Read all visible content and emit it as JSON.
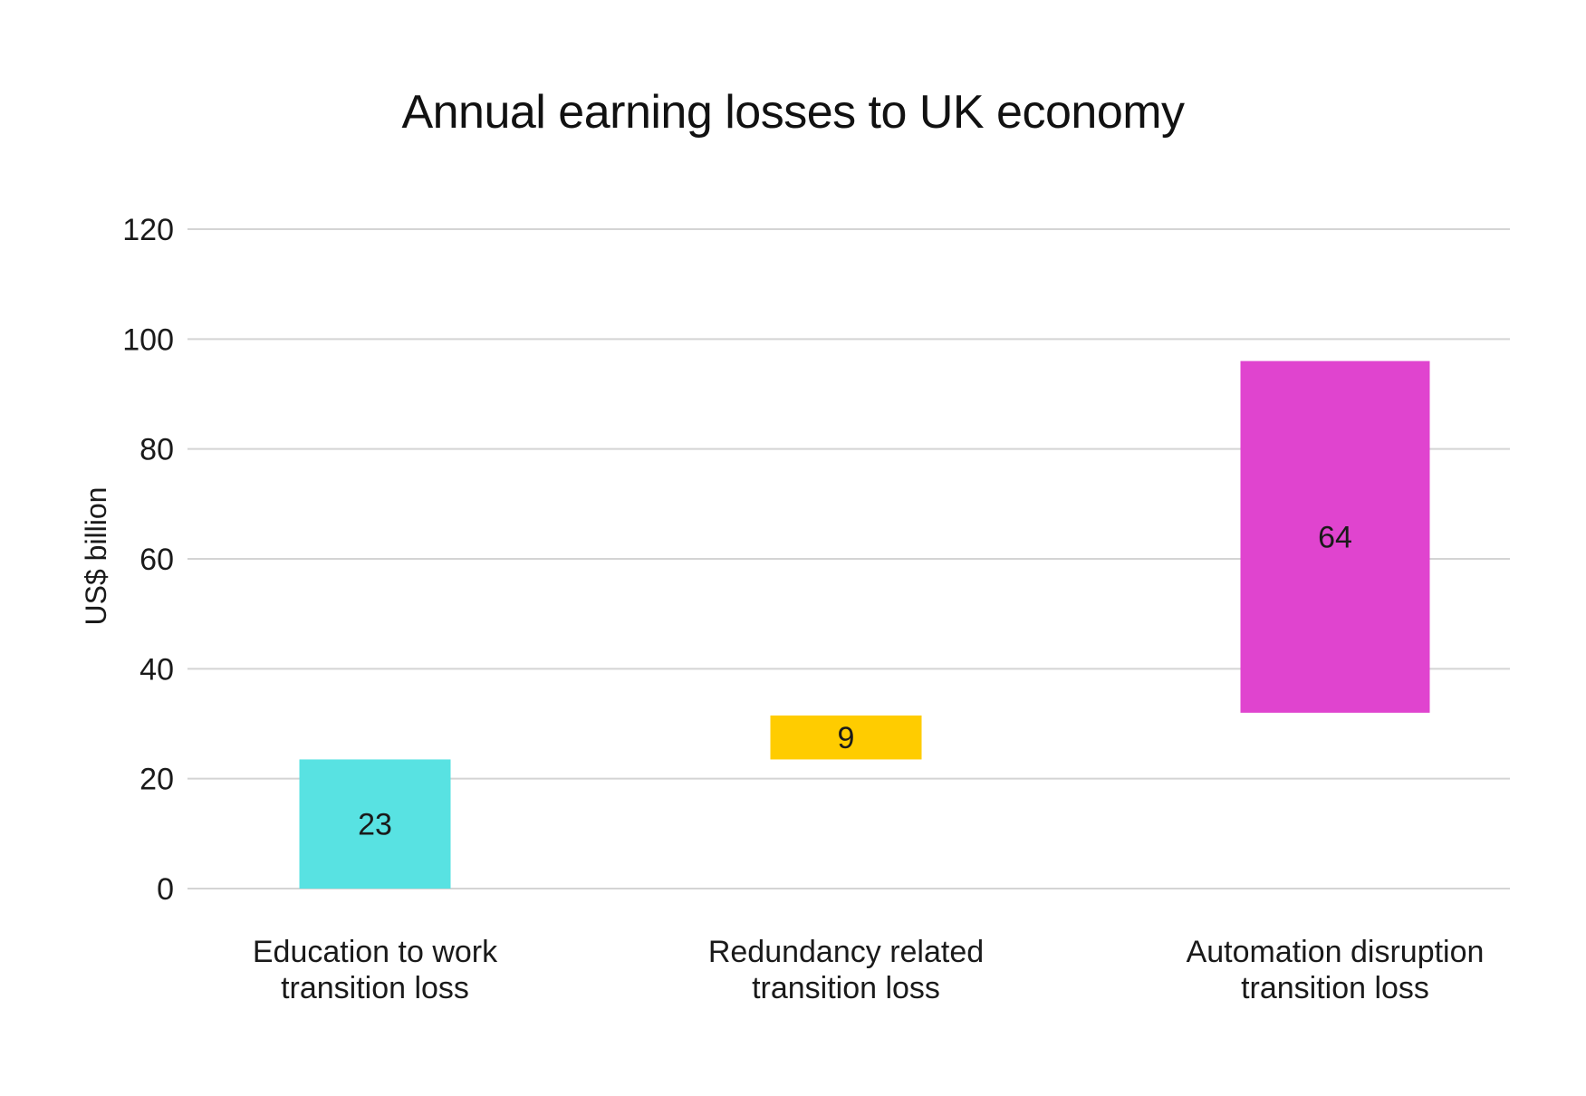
{
  "chart_data": {
    "type": "bar",
    "subtype": "waterfall",
    "title": "Annual earning losses to UK economy",
    "xlabel": "",
    "ylabel": "US$ billion",
    "ylim": [
      0,
      120
    ],
    "yticks": [
      0,
      20,
      40,
      60,
      80,
      100,
      120
    ],
    "grid": true,
    "categories": [
      [
        "Education to work",
        "transition loss"
      ],
      [
        "Redundancy related",
        "transition loss"
      ],
      [
        "Automation disruption",
        "transition loss"
      ]
    ],
    "values": [
      23,
      9,
      64
    ],
    "bars": [
      {
        "base": 0,
        "top": 23.5,
        "label": "23",
        "color": "#58e2e2"
      },
      {
        "base": 23.5,
        "top": 31.5,
        "label": "9",
        "color": "#ffcc00"
      },
      {
        "base": 32,
        "top": 96,
        "label": "64",
        "color": "#e044cf"
      }
    ],
    "colors": {
      "grid": "#d4d4d4",
      "text": "#1a1a1a"
    }
  }
}
